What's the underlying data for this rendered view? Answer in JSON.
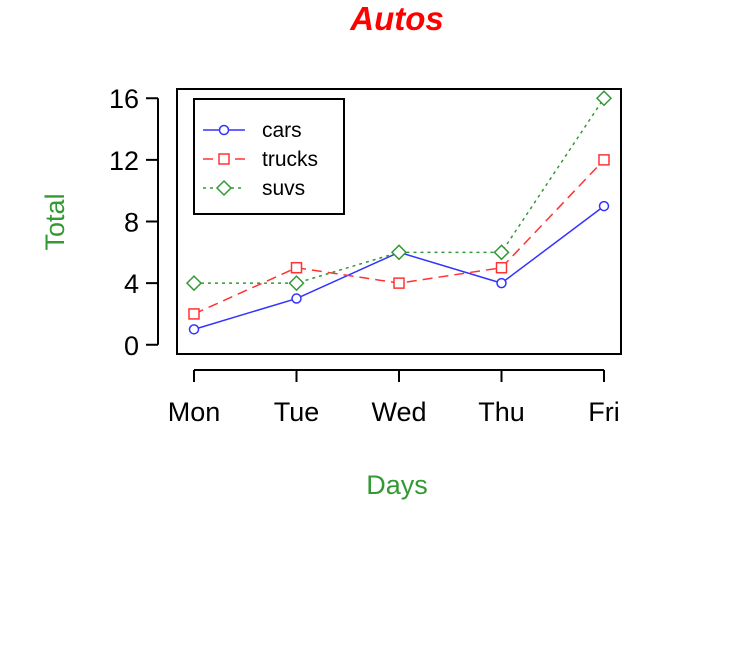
{
  "chart_data": {
    "type": "line",
    "title": "Autos",
    "xlabel": "Days",
    "ylabel": "Total",
    "categories": [
      "Mon",
      "Tue",
      "Wed",
      "Thu",
      "Fri"
    ],
    "series": [
      {
        "name": "cars",
        "values": [
          1,
          3,
          6,
          4,
          9
        ],
        "color": "#3333ff",
        "marker": "circle",
        "line": "solid"
      },
      {
        "name": "trucks",
        "values": [
          2,
          5,
          4,
          5,
          12
        ],
        "color": "#ff3333",
        "marker": "square",
        "line": "dashed"
      },
      {
        "name": "suvs",
        "values": [
          4,
          4,
          6,
          6,
          16
        ],
        "color": "#339933",
        "marker": "diamond",
        "line": "dotted"
      }
    ],
    "yticks": [
      "0",
      "4",
      "8",
      "12",
      "16"
    ],
    "ylim": [
      -0.6,
      16.6
    ],
    "grid": false,
    "legend": "top-left",
    "colors": {
      "title": "#ff0000",
      "axis_titles": "#339933",
      "axes": "#000000"
    }
  }
}
